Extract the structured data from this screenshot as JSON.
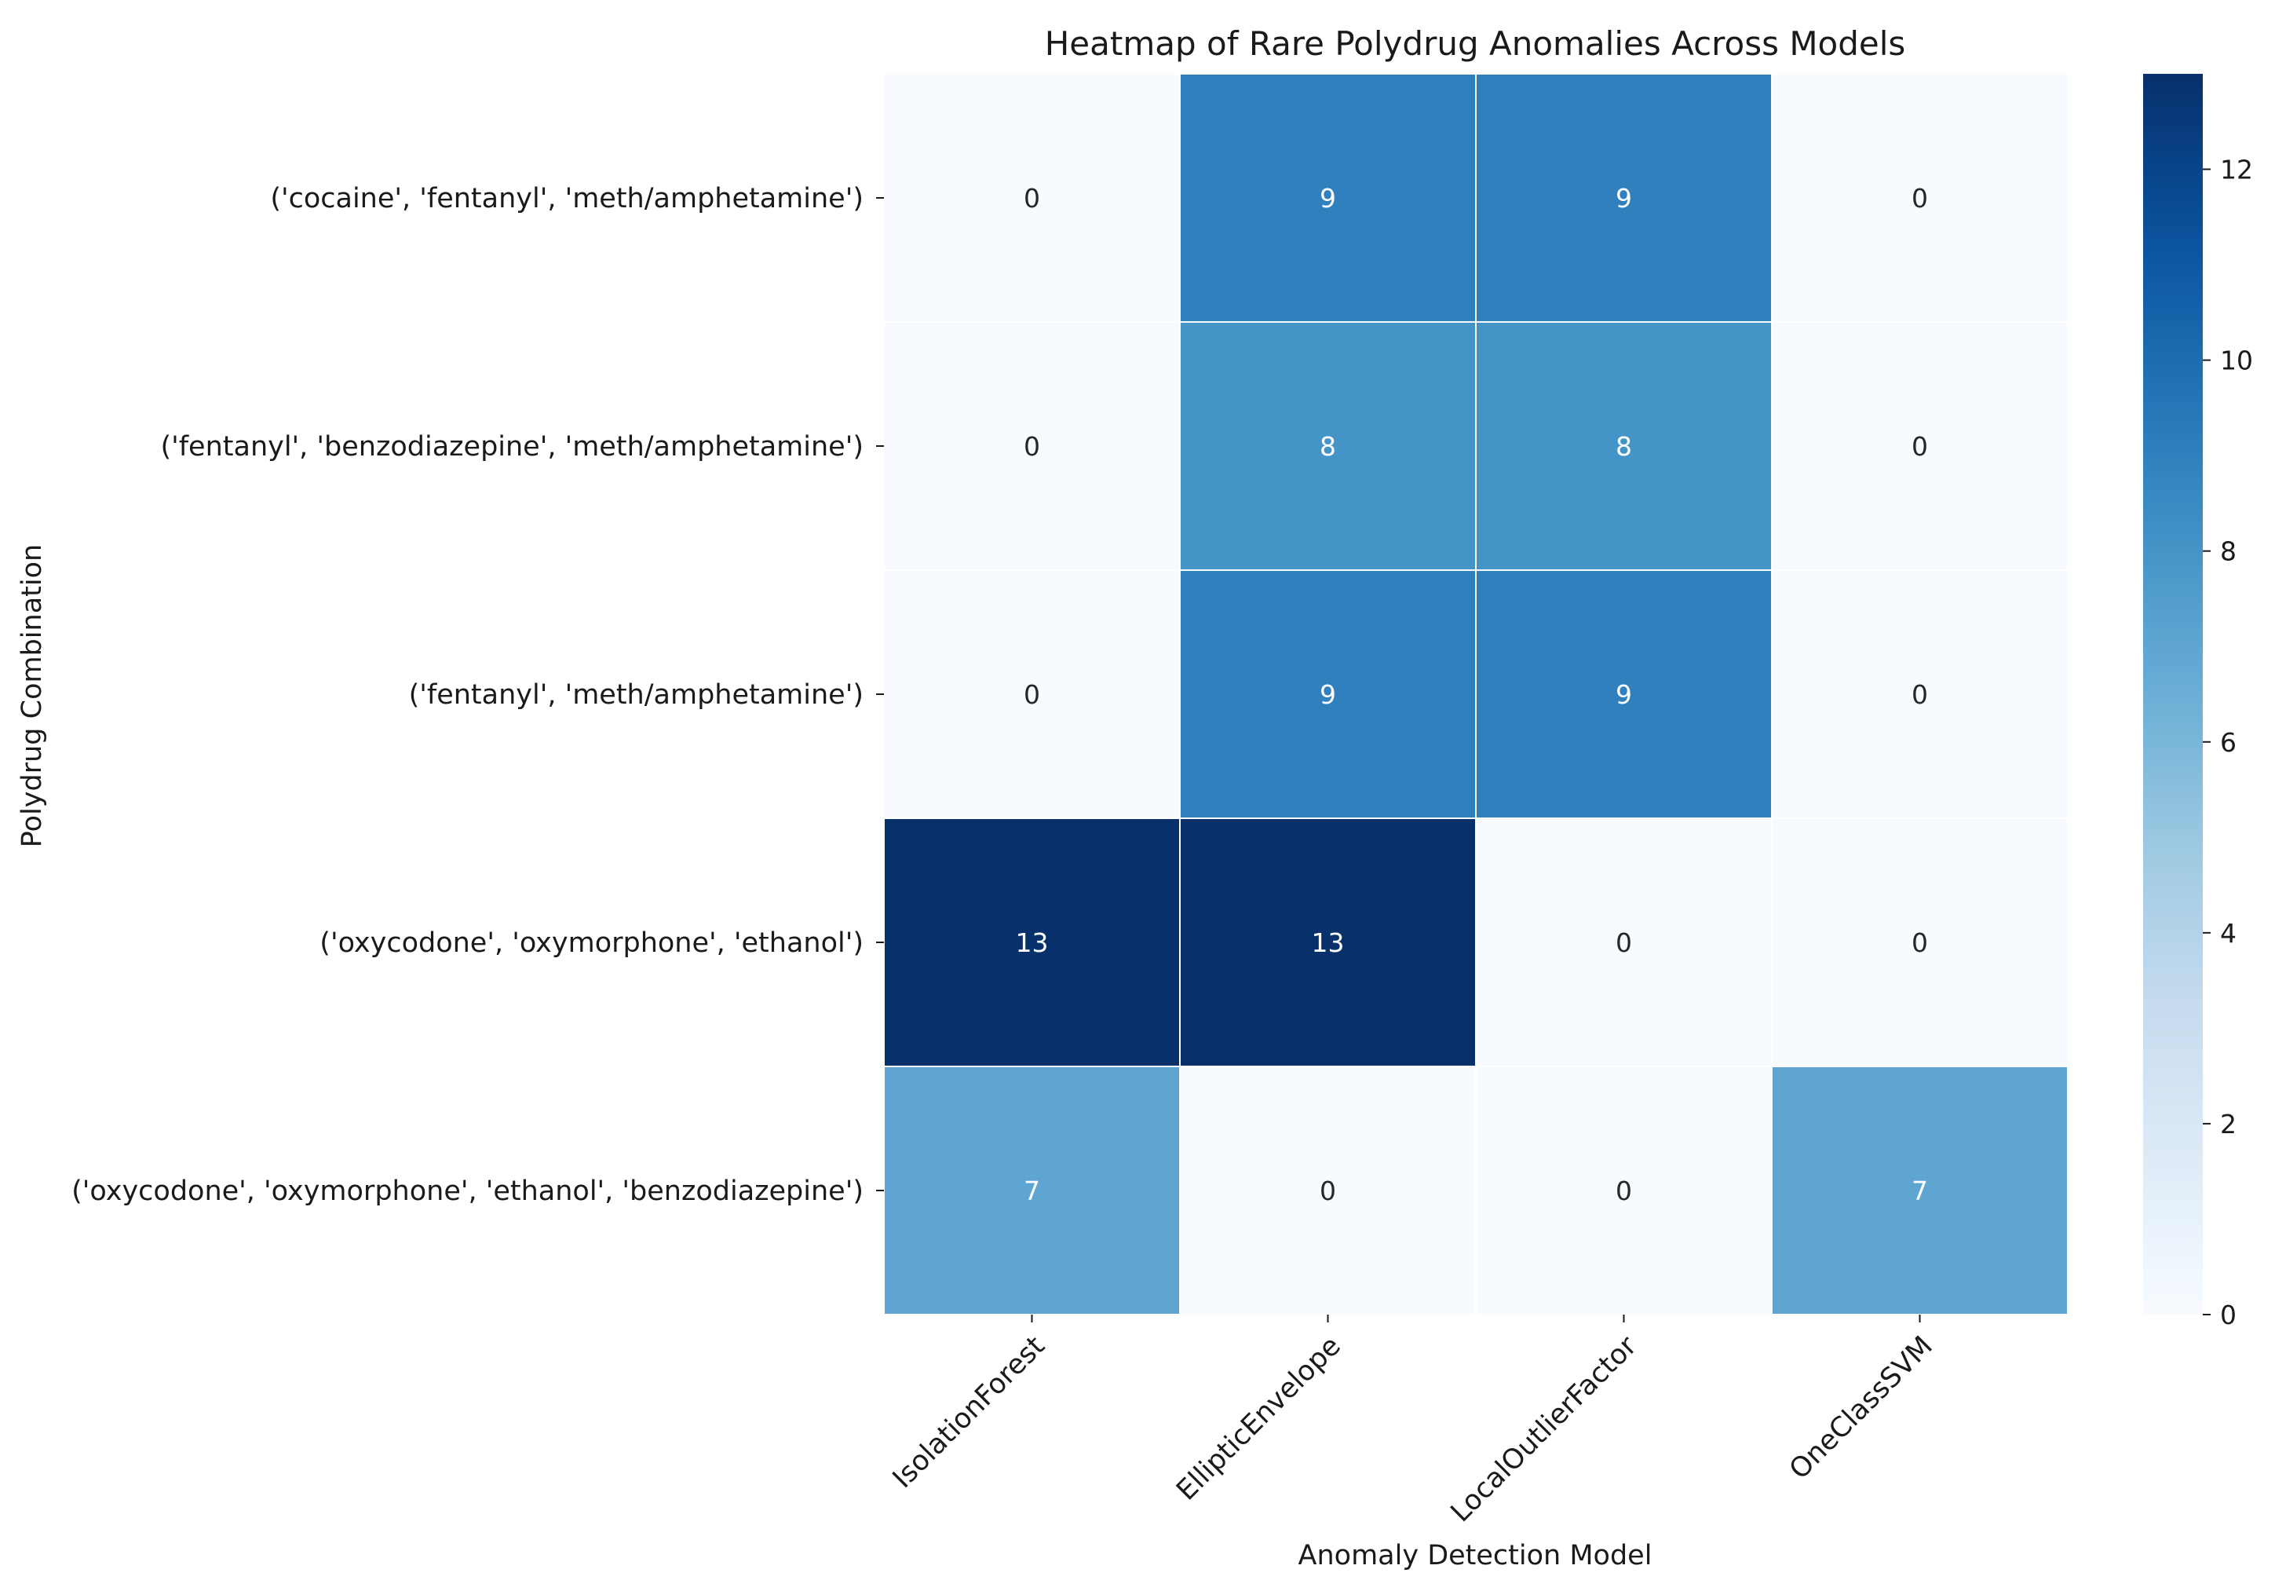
{
  "chart_data": {
    "type": "heatmap",
    "title": "Heatmap of Rare Polydrug Anomalies Across Models",
    "xlabel": "Anomaly Detection Model",
    "ylabel": "Polydrug Combination",
    "x_categories": [
      "IsolationForest",
      "EllipticEnvelope",
      "LocalOutlierFactor",
      "OneClassSVM"
    ],
    "y_categories": [
      "('cocaine', 'fentanyl', 'meth/amphetamine')",
      "('fentanyl', 'benzodiazepine', 'meth/amphetamine')",
      "('fentanyl', 'meth/amphetamine')",
      "('oxycodone', 'oxymorphone', 'ethanol')",
      "('oxycodone', 'oxymorphone', 'ethanol', 'benzodiazepine')"
    ],
    "values": [
      [
        0,
        9,
        9,
        0
      ],
      [
        0,
        8,
        8,
        0
      ],
      [
        0,
        9,
        9,
        0
      ],
      [
        13,
        13,
        0,
        0
      ],
      [
        7,
        0,
        0,
        7
      ]
    ],
    "colormap": "Blues",
    "vmin": 0,
    "vmax": 13,
    "colorbar_ticks": [
      "0",
      "2",
      "4",
      "6",
      "8",
      "10",
      "12"
    ],
    "annotate": true,
    "grid_line_color": "#ffffff"
  }
}
